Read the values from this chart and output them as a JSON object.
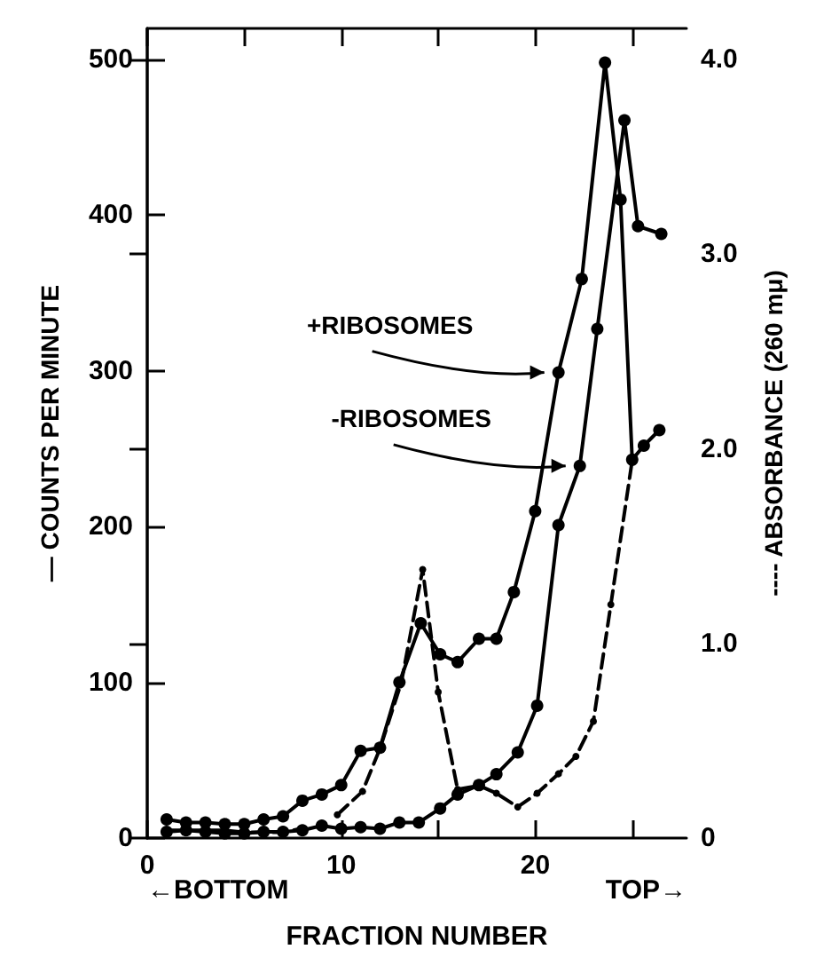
{
  "chart_data": {
    "type": "line",
    "ylabel": "— COUNTS PER MINUTE",
    "y2label": "---- ABSORBANCE (260 mμ)",
    "xlabel": "FRACTION NUMBER",
    "xlim": [
      0,
      27.8
    ],
    "xticks": [
      0,
      {
        "value": 5,
        "label": null
      },
      10,
      {
        "value": 15,
        "label": null
      },
      20,
      {
        "value": 25,
        "label": null
      }
    ],
    "ylim": [
      0,
      520
    ],
    "yticks": [
      0,
      100,
      200,
      300,
      400,
      500
    ],
    "y2lim": [
      0,
      4.16
    ],
    "y2ticks": [
      0,
      {
        "value": 1,
        "label": "1.0"
      },
      {
        "value": 2,
        "label": "2.0"
      },
      {
        "value": 3,
        "label": "3.0"
      },
      {
        "value": 4,
        "label": "4.0"
      }
    ],
    "grid": false,
    "series": [
      {
        "color": "#000000",
        "marker": "circle",
        "line_style": "solid",
        "x": [
          1,
          2,
          3,
          4,
          5,
          6,
          7,
          8,
          9,
          10,
          11,
          12,
          13,
          14.1,
          15.1,
          16,
          17.1,
          18,
          18.9,
          20,
          21.2,
          22.4,
          23.6,
          24.4,
          25,
          25.6,
          26.4
        ],
        "values": [
          12,
          10,
          10,
          9,
          9,
          12,
          14,
          24,
          28,
          34,
          56,
          58,
          100,
          138,
          118,
          113,
          128,
          128,
          158,
          210,
          299,
          359,
          498,
          410,
          243,
          252,
          262
        ]
      },
      {
        "color": "#000000",
        "marker": "circle",
        "line_style": "solid",
        "x": [
          1,
          2,
          3,
          4,
          5,
          6,
          7,
          8,
          9,
          10,
          11,
          12,
          13,
          14,
          15.1,
          16,
          17.1,
          18,
          19.1,
          20.1,
          21.2,
          22.3,
          23.2,
          24.6,
          25.3,
          26.5
        ],
        "values": [
          4,
          5,
          4,
          3,
          3,
          4,
          4,
          5,
          8,
          6,
          7,
          6,
          10,
          10,
          19,
          28,
          34,
          41,
          55,
          85,
          201,
          239,
          327,
          461,
          393,
          388
        ]
      },
      {
        "color": "#000000",
        "marker": "circle",
        "line_style": "dashed",
        "axis": "y2",
        "x": [
          1,
          2,
          3,
          4,
          5,
          6,
          7,
          8,
          9,
          9.8,
          11.1,
          12,
          13.1,
          14.2,
          15,
          16,
          17.1,
          18,
          19.1,
          20.1,
          21.2,
          22.1,
          23,
          23.9,
          25
        ],
        "values": [
          0.04,
          0.04,
          0.04,
          0.04,
          0.03,
          0.03,
          0.03,
          0.05,
          null,
          0.12,
          0.24,
          0.46,
          0.8,
          1.38,
          0.75,
          0.25,
          0.27,
          0.23,
          0.16,
          0.23,
          0.33,
          0.42,
          0.6,
          1.2,
          1.94
        ]
      }
    ],
    "annotations": [
      {
        "text": "+RIBOSOMES",
        "x": 21.2,
        "y": 299
      },
      {
        "text": "-RIBOSOMES",
        "x": 22.3,
        "y": 239
      },
      "←BOTTOM",
      "TOP→"
    ]
  }
}
